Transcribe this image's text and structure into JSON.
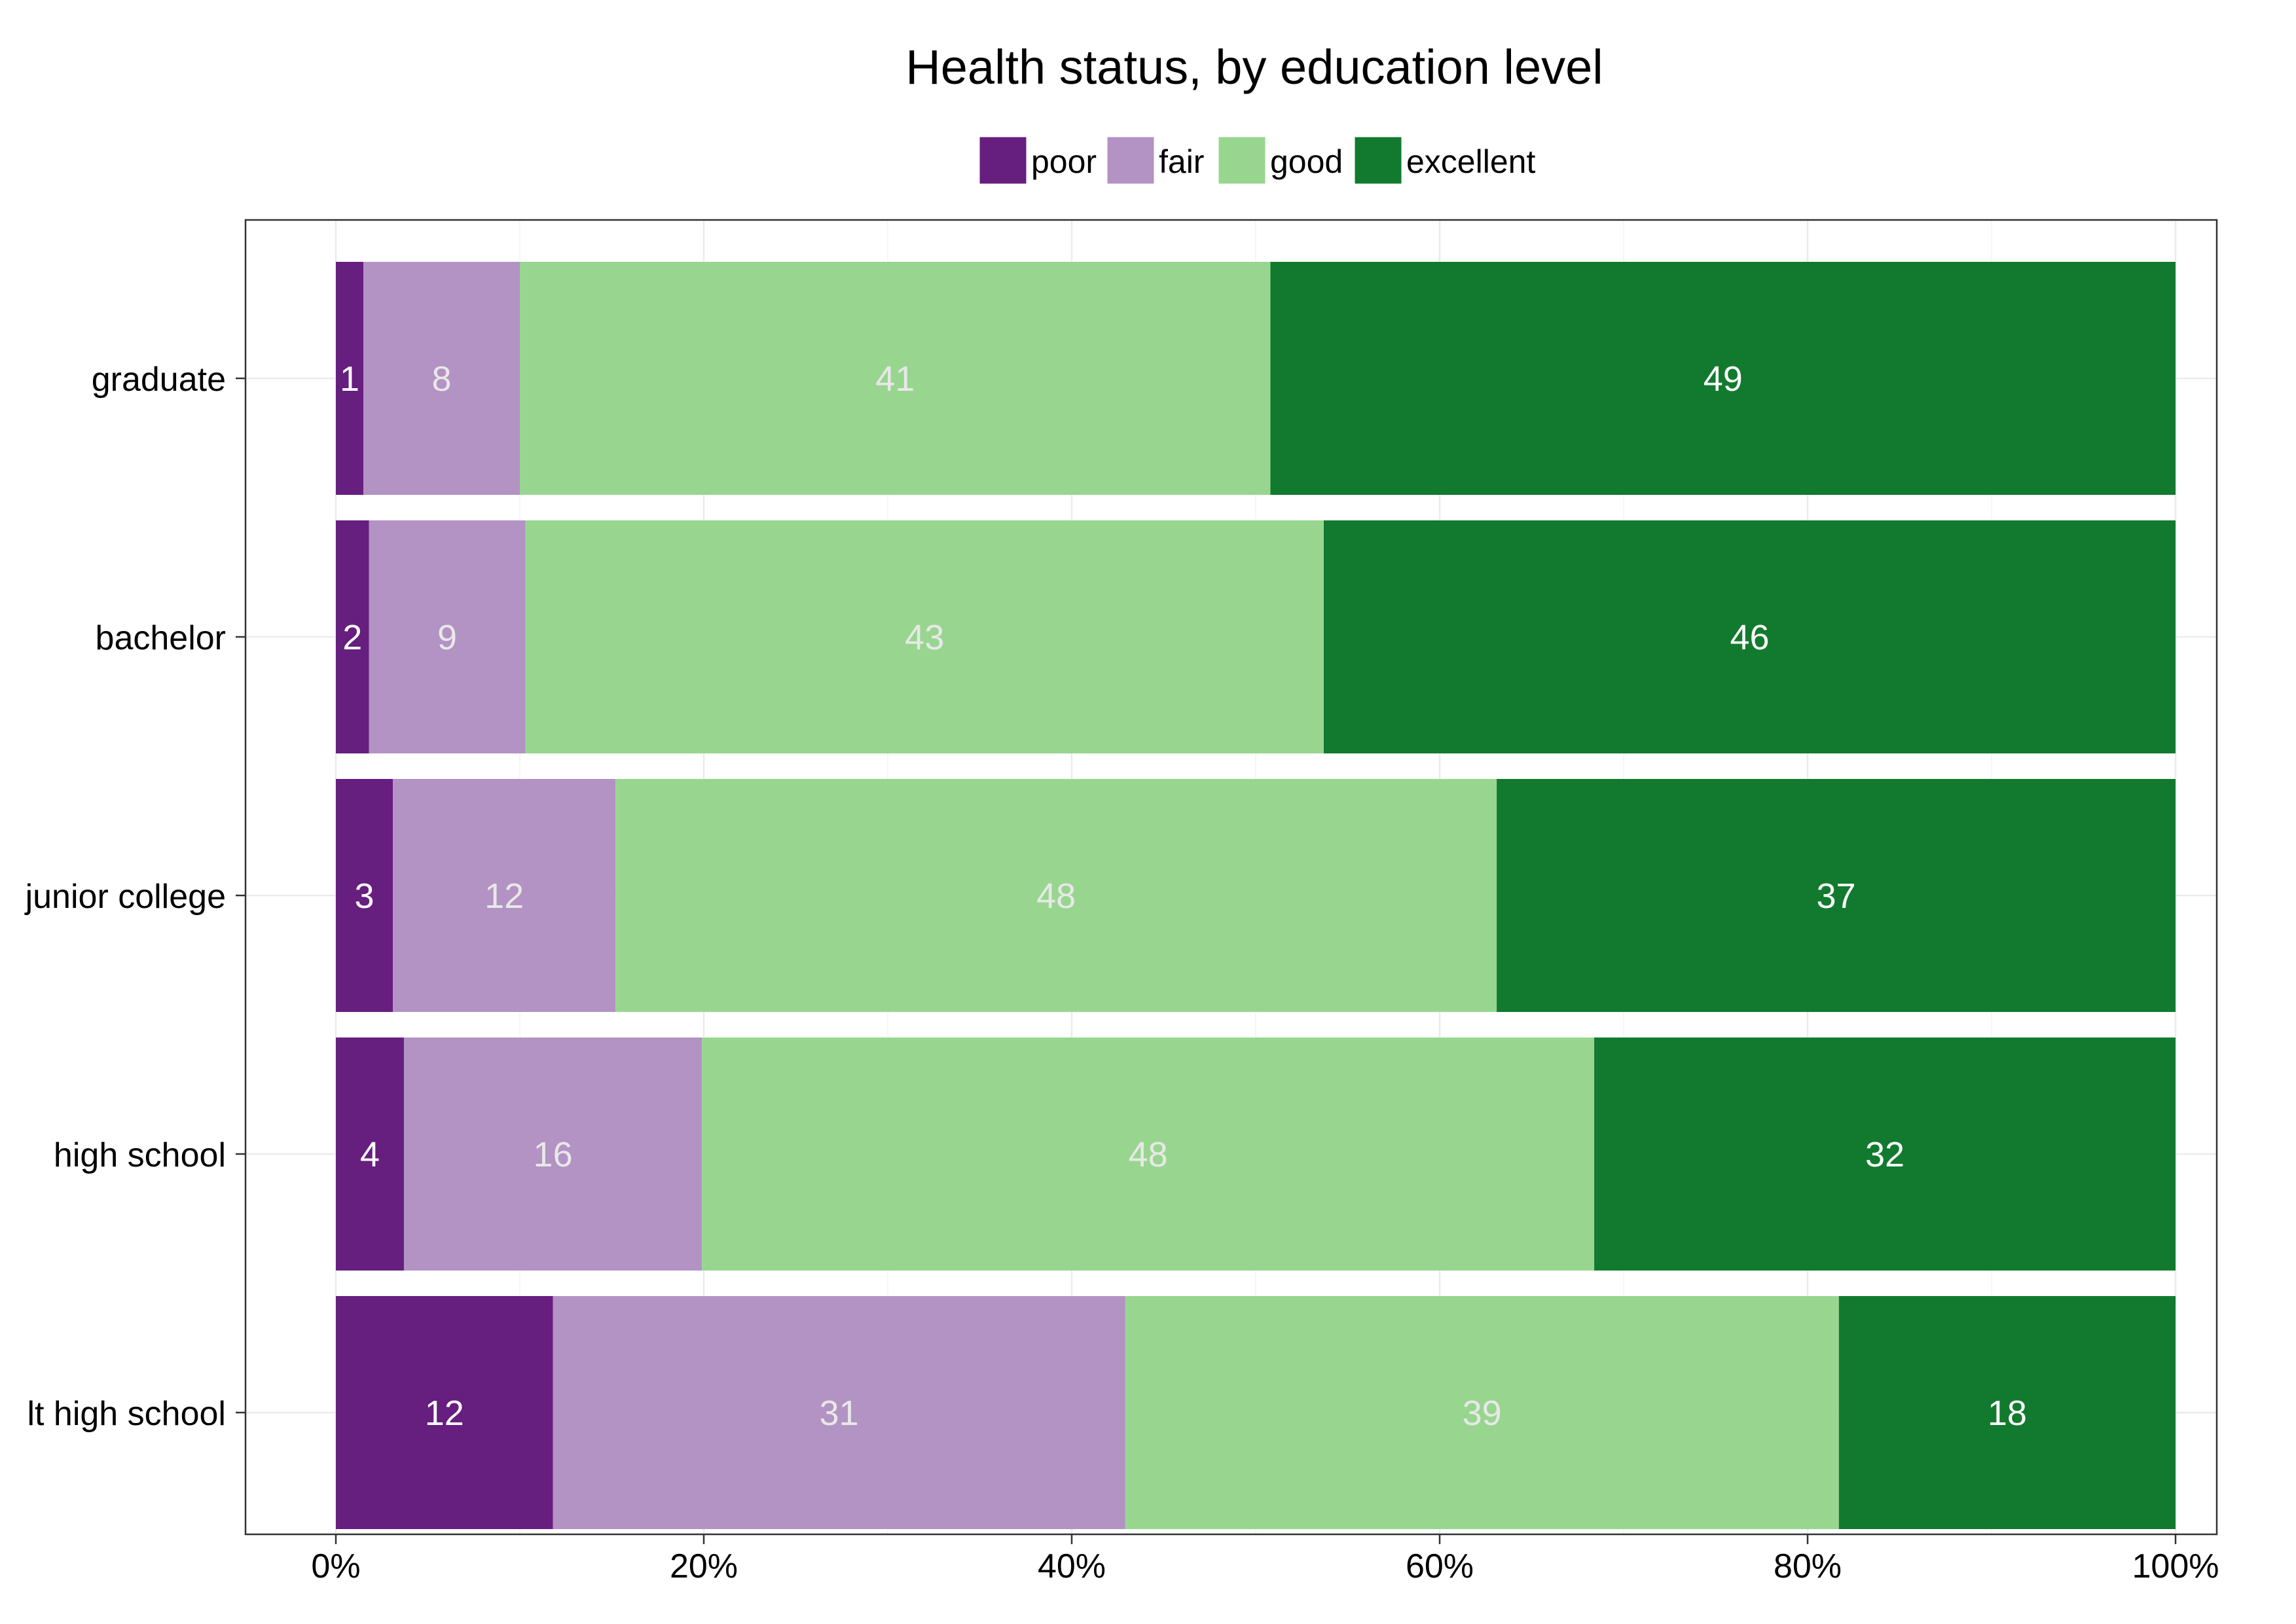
{
  "chart_data": {
    "type": "bar",
    "orientation": "horizontal",
    "stacked": true,
    "percent": true,
    "title": "Health status, by education level",
    "xlabel": "",
    "ylabel": "",
    "xlim": [
      0,
      100
    ],
    "x_ticks": [
      "0%",
      "20%",
      "40%",
      "60%",
      "80%",
      "100%"
    ],
    "x_tick_values": [
      0,
      20,
      40,
      60,
      80,
      100
    ],
    "grid": true,
    "legend_position": "top",
    "categories": [
      "graduate",
      "bachelor",
      "junior college",
      "high school",
      "lt high school"
    ],
    "series": [
      {
        "name": "poor",
        "color": "#661e7f",
        "values": [
          1.5,
          1.8,
          3.1,
          3.7,
          11.8
        ],
        "labels": [
          "1",
          "2",
          "3",
          "4",
          "12"
        ],
        "label_color": "#ffffff"
      },
      {
        "name": "fair",
        "color": "#b392c4",
        "values": [
          8.5,
          8.5,
          12.1,
          16.2,
          31.1
        ],
        "labels": [
          "8",
          "9",
          "12",
          "16",
          "31"
        ],
        "label_color": "#e8e8e8"
      },
      {
        "name": "good",
        "color": "#98d690",
        "values": [
          40.8,
          43.4,
          47.9,
          48.5,
          38.8
        ],
        "labels": [
          "41",
          "43",
          "48",
          "48",
          "39"
        ],
        "label_color": "#e8e8e8"
      },
      {
        "name": "excellent",
        "color": "#117a2e",
        "values": [
          49.2,
          46.3,
          36.9,
          31.6,
          18.3
        ],
        "labels": [
          "49",
          "46",
          "37",
          "32",
          "18"
        ],
        "label_color": "#ffffff"
      }
    ]
  }
}
